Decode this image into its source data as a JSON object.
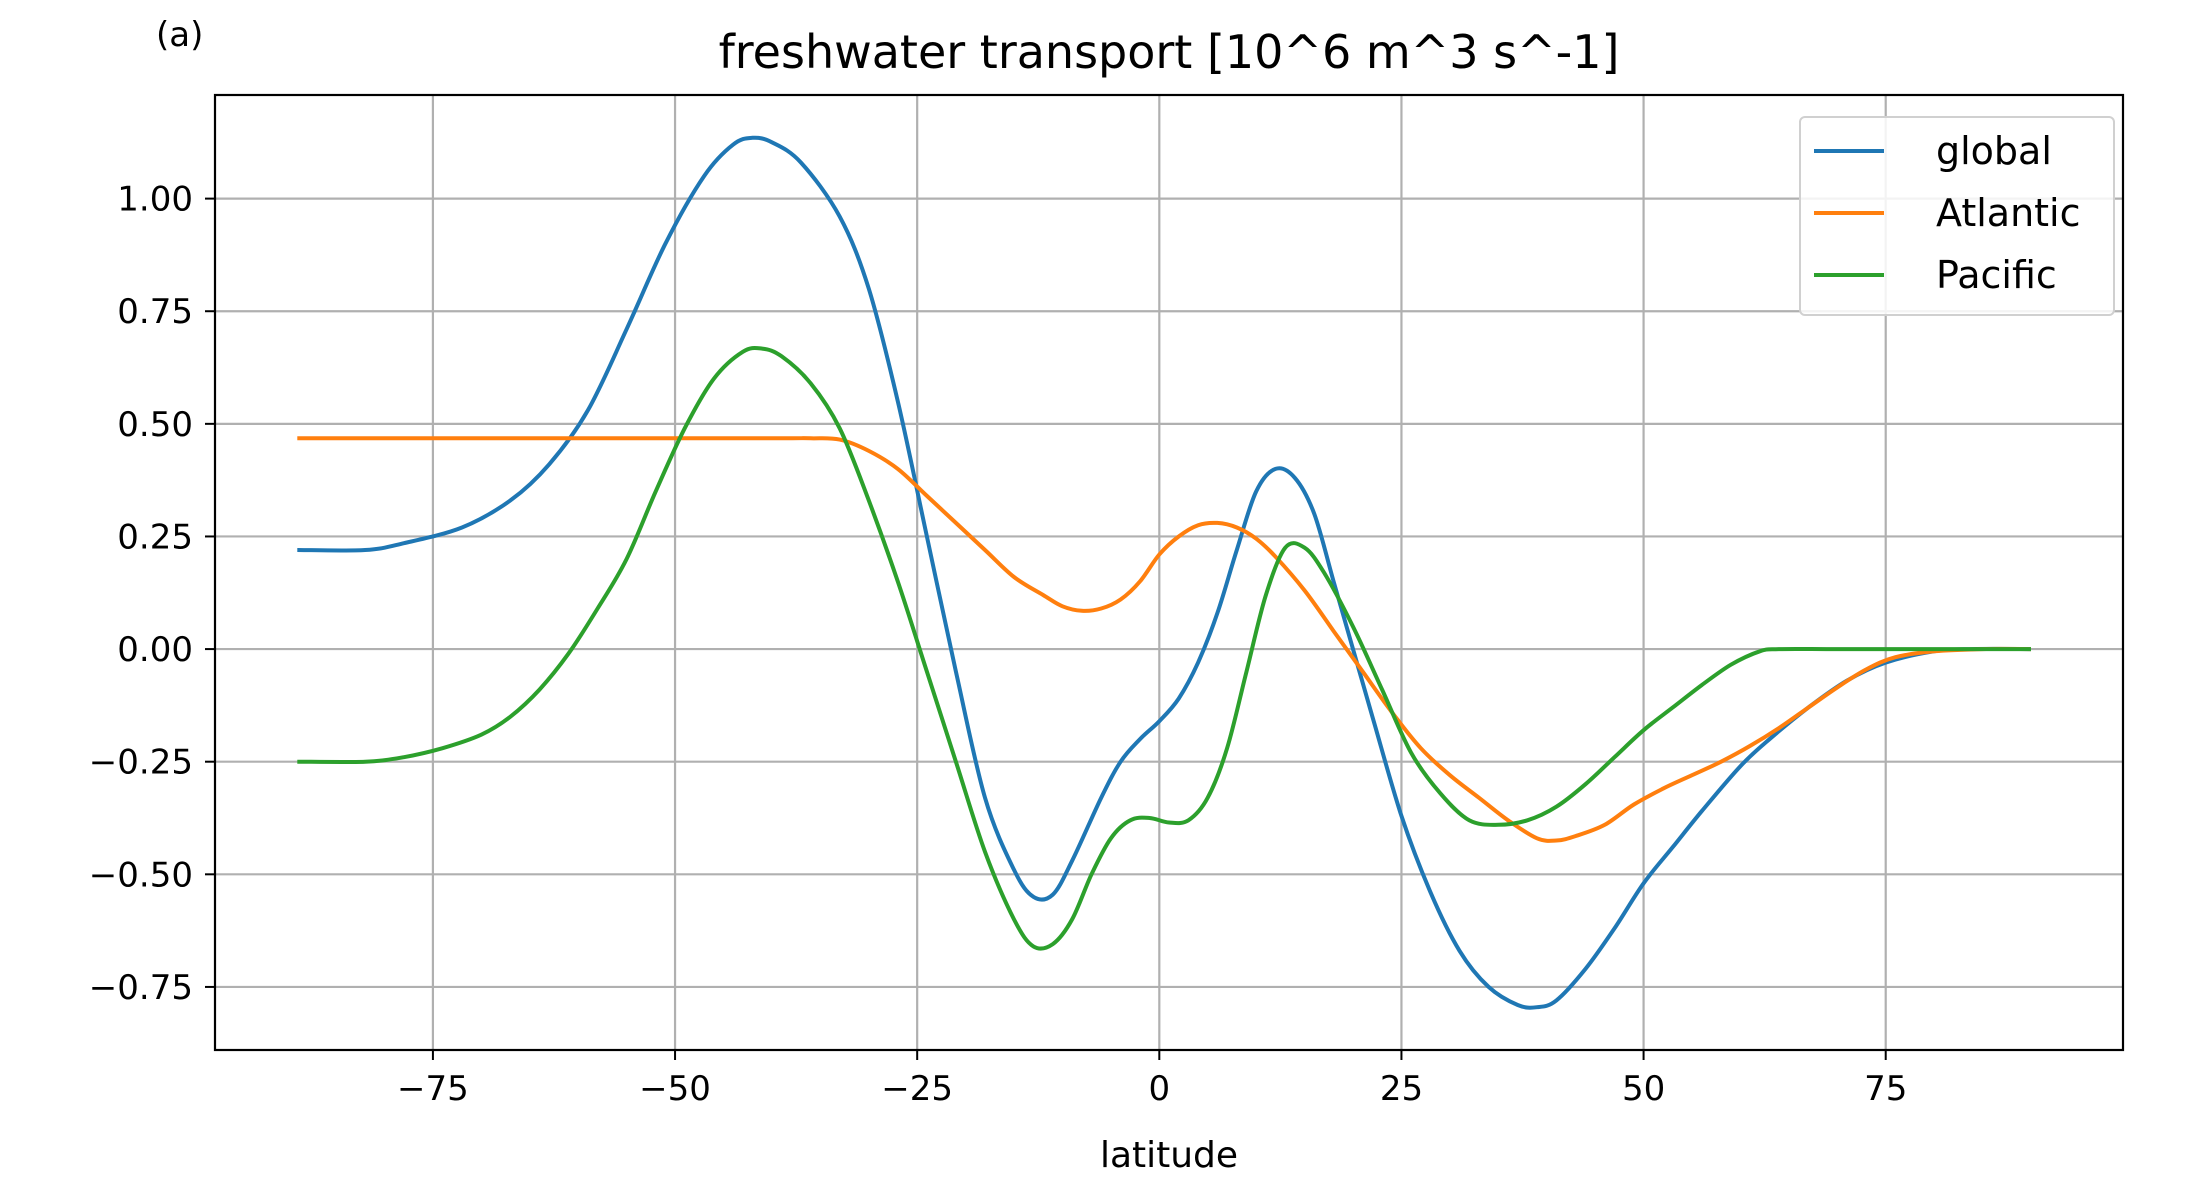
{
  "chart_data": {
    "type": "line",
    "panel_label": "(a)",
    "title": "freshwater transport [10^6 m^3 s^-1]",
    "xlabel": "latitude",
    "ylabel": "",
    "xlim": [
      -97.5,
      99.5
    ],
    "ylim": [
      -0.89,
      1.23
    ],
    "x_ticks": [
      -75,
      -50,
      -25,
      0,
      25,
      50,
      75
    ],
    "x_tick_labels": [
      "−75",
      "−50",
      "−25",
      "0",
      "25",
      "50",
      "75"
    ],
    "y_ticks": [
      1.0,
      0.75,
      0.5,
      0.25,
      0.0,
      -0.25,
      -0.5,
      -0.75
    ],
    "y_tick_labels": [
      "1.00",
      "0.75",
      "0.50",
      "0.25",
      "0.00",
      "−0.25",
      "−0.50",
      "−0.75"
    ],
    "grid": true,
    "legend": {
      "placement": "top-right"
    },
    "series": [
      {
        "name": "global",
        "color": "#1f77b4",
        "points": [
          [
            -89,
            0.22
          ],
          [
            -82,
            0.22
          ],
          [
            -78,
            0.235
          ],
          [
            -72,
            0.27
          ],
          [
            -67,
            0.33
          ],
          [
            -63,
            0.41
          ],
          [
            -59,
            0.53
          ],
          [
            -55,
            0.71
          ],
          [
            -51,
            0.9
          ],
          [
            -47,
            1.05
          ],
          [
            -44,
            1.12
          ],
          [
            -42,
            1.135
          ],
          [
            -40,
            1.125
          ],
          [
            -37,
            1.08
          ],
          [
            -33,
            0.96
          ],
          [
            -30,
            0.8
          ],
          [
            -27,
            0.55
          ],
          [
            -24,
            0.25
          ],
          [
            -21,
            -0.05
          ],
          [
            -18,
            -0.33
          ],
          [
            -15,
            -0.49
          ],
          [
            -13,
            -0.55
          ],
          [
            -11,
            -0.545
          ],
          [
            -9,
            -0.47
          ],
          [
            -6,
            -0.33
          ],
          [
            -4,
            -0.25
          ],
          [
            -2,
            -0.2
          ],
          [
            0,
            -0.16
          ],
          [
            2,
            -0.11
          ],
          [
            4,
            -0.03
          ],
          [
            6,
            0.08
          ],
          [
            8,
            0.22
          ],
          [
            10,
            0.35
          ],
          [
            12,
            0.4
          ],
          [
            14,
            0.38
          ],
          [
            16,
            0.3
          ],
          [
            18,
            0.15
          ],
          [
            20,
            0.0
          ],
          [
            22,
            -0.15
          ],
          [
            25,
            -0.37
          ],
          [
            28,
            -0.54
          ],
          [
            31,
            -0.67
          ],
          [
            34,
            -0.75
          ],
          [
            37,
            -0.79
          ],
          [
            39,
            -0.795
          ],
          [
            41,
            -0.78
          ],
          [
            44,
            -0.71
          ],
          [
            47,
            -0.62
          ],
          [
            50,
            -0.52
          ],
          [
            53,
            -0.44
          ],
          [
            56,
            -0.36
          ],
          [
            60,
            -0.26
          ],
          [
            63,
            -0.2
          ],
          [
            67,
            -0.13
          ],
          [
            71,
            -0.07
          ],
          [
            75,
            -0.03
          ],
          [
            80,
            -0.005
          ],
          [
            84,
            0.0
          ],
          [
            90,
            0.0
          ]
        ]
      },
      {
        "name": "Atlantic",
        "color": "#ff7f0e",
        "points": [
          [
            -89,
            0.468
          ],
          [
            -60,
            0.468
          ],
          [
            -40,
            0.468
          ],
          [
            -36,
            0.468
          ],
          [
            -33,
            0.465
          ],
          [
            -30,
            0.44
          ],
          [
            -27,
            0.4
          ],
          [
            -24,
            0.34
          ],
          [
            -21,
            0.28
          ],
          [
            -18,
            0.22
          ],
          [
            -15,
            0.16
          ],
          [
            -12,
            0.12
          ],
          [
            -10,
            0.095
          ],
          [
            -8,
            0.085
          ],
          [
            -6,
            0.09
          ],
          [
            -4,
            0.11
          ],
          [
            -2,
            0.15
          ],
          [
            0,
            0.21
          ],
          [
            2,
            0.25
          ],
          [
            4,
            0.275
          ],
          [
            6,
            0.28
          ],
          [
            8,
            0.27
          ],
          [
            10,
            0.245
          ],
          [
            12,
            0.205
          ],
          [
            15,
            0.13
          ],
          [
            18,
            0.04
          ],
          [
            21,
            -0.05
          ],
          [
            24,
            -0.14
          ],
          [
            27,
            -0.22
          ],
          [
            30,
            -0.28
          ],
          [
            33,
            -0.33
          ],
          [
            36,
            -0.38
          ],
          [
            39,
            -0.42
          ],
          [
            41,
            -0.425
          ],
          [
            43,
            -0.415
          ],
          [
            46,
            -0.39
          ],
          [
            49,
            -0.345
          ],
          [
            52,
            -0.31
          ],
          [
            55,
            -0.28
          ],
          [
            58,
            -0.25
          ],
          [
            61,
            -0.215
          ],
          [
            64,
            -0.175
          ],
          [
            67,
            -0.13
          ],
          [
            70,
            -0.085
          ],
          [
            73,
            -0.045
          ],
          [
            76,
            -0.018
          ],
          [
            80,
            -0.005
          ],
          [
            85,
            0.0
          ],
          [
            90,
            0.0
          ]
        ]
      },
      {
        "name": "Pacific",
        "color": "#2ca02c",
        "points": [
          [
            -89,
            -0.25
          ],
          [
            -82,
            -0.25
          ],
          [
            -78,
            -0.24
          ],
          [
            -74,
            -0.22
          ],
          [
            -70,
            -0.19
          ],
          [
            -67,
            -0.15
          ],
          [
            -64,
            -0.09
          ],
          [
            -61,
            -0.01
          ],
          [
            -58,
            0.09
          ],
          [
            -55,
            0.2
          ],
          [
            -52,
            0.35
          ],
          [
            -49,
            0.49
          ],
          [
            -46,
            0.6
          ],
          [
            -43,
            0.66
          ],
          [
            -41,
            0.667
          ],
          [
            -39,
            0.65
          ],
          [
            -36,
            0.59
          ],
          [
            -33,
            0.49
          ],
          [
            -30,
            0.33
          ],
          [
            -27,
            0.15
          ],
          [
            -24,
            -0.05
          ],
          [
            -21,
            -0.25
          ],
          [
            -18,
            -0.45
          ],
          [
            -15,
            -0.6
          ],
          [
            -13,
            -0.66
          ],
          [
            -11,
            -0.655
          ],
          [
            -9,
            -0.6
          ],
          [
            -7,
            -0.5
          ],
          [
            -5,
            -0.42
          ],
          [
            -3,
            -0.38
          ],
          [
            -1,
            -0.375
          ],
          [
            1,
            -0.385
          ],
          [
            3,
            -0.38
          ],
          [
            5,
            -0.33
          ],
          [
            7,
            -0.22
          ],
          [
            9,
            -0.05
          ],
          [
            11,
            0.12
          ],
          [
            13,
            0.225
          ],
          [
            15,
            0.225
          ],
          [
            17,
            0.17
          ],
          [
            20,
            0.05
          ],
          [
            23,
            -0.09
          ],
          [
            26,
            -0.23
          ],
          [
            29,
            -0.32
          ],
          [
            32,
            -0.38
          ],
          [
            35,
            -0.39
          ],
          [
            38,
            -0.38
          ],
          [
            41,
            -0.35
          ],
          [
            44,
            -0.3
          ],
          [
            47,
            -0.24
          ],
          [
            50,
            -0.18
          ],
          [
            53,
            -0.13
          ],
          [
            56,
            -0.08
          ],
          [
            59,
            -0.035
          ],
          [
            62,
            -0.005
          ],
          [
            64,
            0.0
          ],
          [
            70,
            0.0
          ],
          [
            80,
            0.0
          ],
          [
            90,
            0.0
          ]
        ]
      }
    ]
  }
}
